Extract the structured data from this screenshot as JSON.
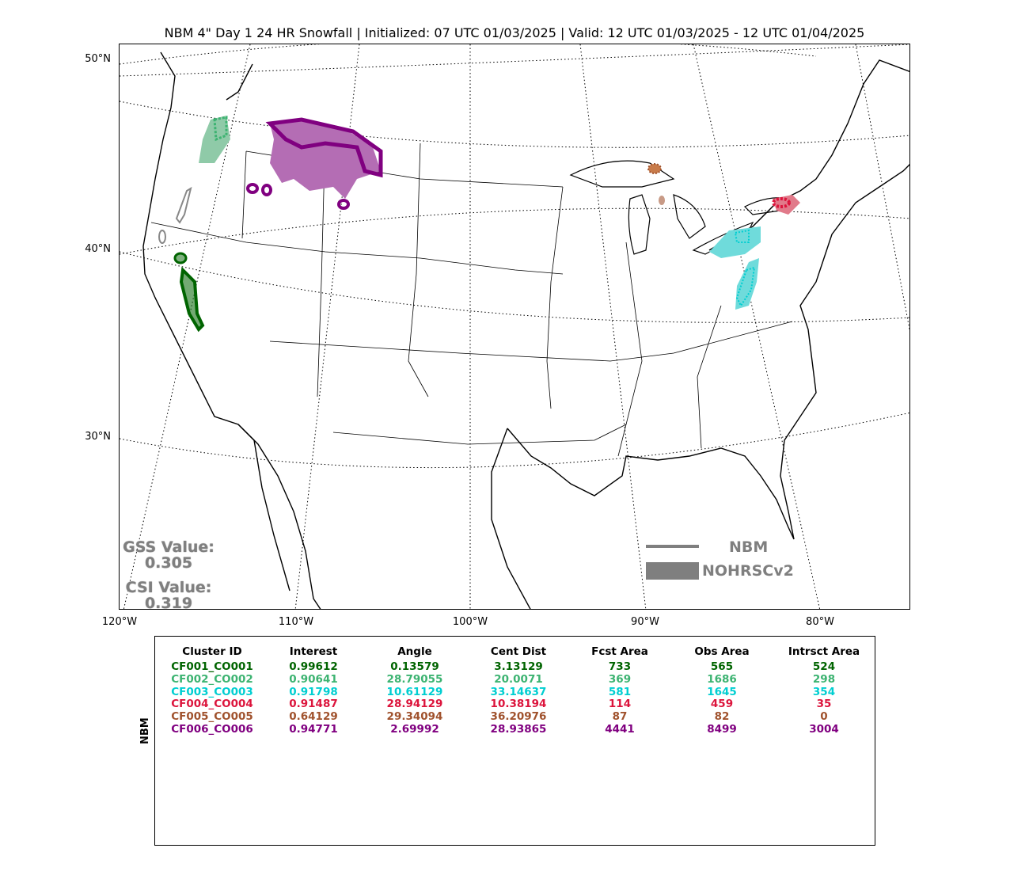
{
  "title": "NBM 4\" Day 1 24 HR Snowfall | Initialized: 07 UTC 01/03/2025 | Valid: 12 UTC 01/03/2025 - 12 UTC 01/04/2025",
  "map": {
    "lat_labels": [
      "50°N",
      "40°N",
      "30°N"
    ],
    "lon_labels": [
      "120°W",
      "110°W",
      "100°W",
      "90°W",
      "80°W"
    ],
    "scores": {
      "gss_label": "GSS Value:",
      "gss_value": "0.305",
      "csi_label": "CSI Value:",
      "csi_value": "0.319"
    },
    "legend": {
      "line_label": "NBM",
      "fill_label": "NOHRSCv2",
      "color": "#7f7f7f"
    }
  },
  "table": {
    "row_label": "NBM",
    "headers": [
      "Cluster ID",
      "Interest",
      "Angle",
      "Cent Dist",
      "Fcst Area",
      "Obs Area",
      "Intrsct Area"
    ],
    "rows": [
      {
        "color": "#006400",
        "cells": [
          "CF001_CO001",
          "0.99612",
          "0.13579",
          "3.13129",
          "733",
          "565",
          "524"
        ]
      },
      {
        "color": "#3cb371",
        "cells": [
          "CF002_CO002",
          "0.90641",
          "28.79055",
          "20.0071",
          "369",
          "1686",
          "298"
        ]
      },
      {
        "color": "#00ced1",
        "cells": [
          "CF003_CO003",
          "0.91798",
          "10.61129",
          "33.14637",
          "581",
          "1645",
          "354"
        ]
      },
      {
        "color": "#dc143c",
        "cells": [
          "CF004_CO004",
          "0.91487",
          "28.94129",
          "10.38194",
          "114",
          "459",
          "35"
        ]
      },
      {
        "color": "#a0522d",
        "cells": [
          "CF005_CO005",
          "0.64129",
          "29.34094",
          "36.20976",
          "87",
          "82",
          "0"
        ]
      },
      {
        "color": "#800080",
        "cells": [
          "CF006_CO006",
          "0.94771",
          "2.69992",
          "28.93865",
          "4441",
          "8499",
          "3004"
        ]
      }
    ]
  }
}
